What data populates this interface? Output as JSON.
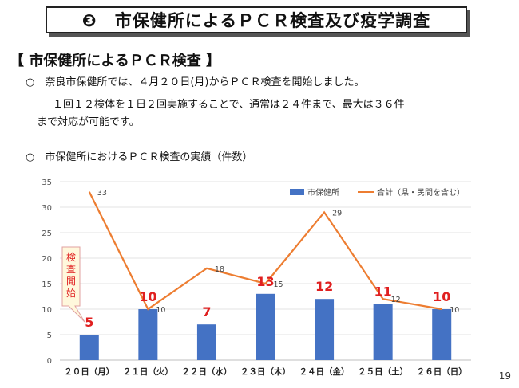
{
  "title": "❸　市保健所によるＰＣＲ検査及び疫学調査",
  "section_heading": "【 市保健所によるＰＣＲ検査 】",
  "paragraph1": {
    "line1": "○　奈良市保健所では、４月２０日(月)からＰＣＲ検査を開始しました。",
    "line2": "１回１２検体を１日２回実施することで、通常は２４件まで、最大は３６件",
    "line3": "まで対応が可能です。"
  },
  "chart_caption": "○　市保健所におけるＰＣＲ検査の実績（件数）",
  "page_number": "19",
  "chart_data": {
    "type": "bar+line",
    "categories": [
      "２０日（月）",
      "２１日（火）",
      "２２日（水）",
      "２３日（木）",
      "２４日（金）",
      "２５日（土）",
      "２６日（日）"
    ],
    "series": [
      {
        "name": "市保健所",
        "kind": "bar",
        "values": [
          5,
          10,
          7,
          13,
          12,
          11,
          10
        ],
        "color": "#4472C4",
        "label_color": "#E02020"
      },
      {
        "name": "合計（県・民間を含む）",
        "kind": "line",
        "values": [
          33,
          10,
          18,
          15,
          29,
          12,
          10
        ],
        "color": "#ED7D31"
      }
    ],
    "ylim": [
      0,
      35
    ],
    "yticks": [
      0,
      5,
      10,
      15,
      20,
      25,
      30,
      35
    ],
    "legend_position": "top-right",
    "annotation": {
      "text": "検査開始",
      "target": "２０日（月）",
      "color": "#E02020",
      "fill": "#FFF8DC",
      "border": "#E0A0A0"
    }
  }
}
